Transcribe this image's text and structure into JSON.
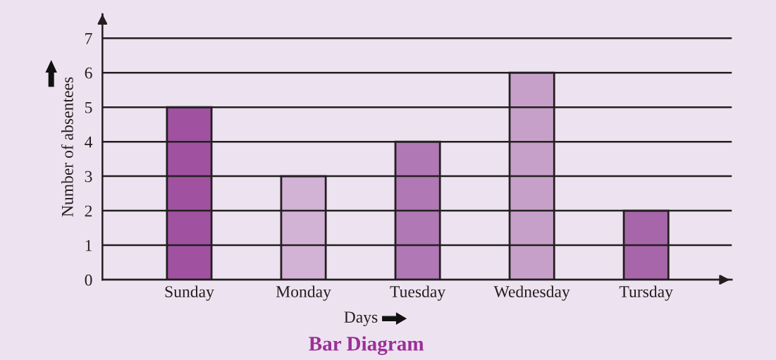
{
  "chart_data": {
    "type": "bar",
    "title": "Bar Diagram",
    "xlabel": "Days",
    "ylabel": "Number of absentees",
    "categories": [
      "Sunday",
      "Monday",
      "Tuesday",
      "Wednesday",
      "Tursday"
    ],
    "values": [
      5,
      3,
      4,
      6,
      2
    ],
    "colors": [
      "#a052a0",
      "#d3b3d5",
      "#b078b5",
      "#c7a0c9",
      "#a866aa"
    ],
    "ylim": [
      0,
      7.7
    ],
    "yticks": [
      0,
      1,
      2,
      3,
      4,
      5,
      6,
      7
    ],
    "grid": "y",
    "legend": false
  }
}
